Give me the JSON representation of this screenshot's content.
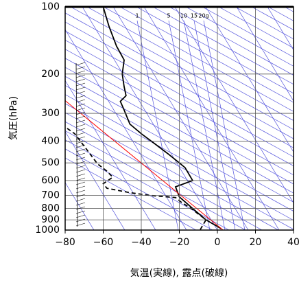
{
  "chart_data": {
    "type": "line",
    "y_label": "気圧(hPa)",
    "x_label": "気温(実線), 露点(破線)",
    "mixing_ratio_labels": [
      "1",
      "5",
      "10",
      "15",
      "20g"
    ],
    "xlim": [
      -80,
      40
    ],
    "xticks": [
      {
        "value": -80,
        "label": "−80"
      },
      {
        "value": -60,
        "label": "−60"
      },
      {
        "value": -40,
        "label": "−40"
      },
      {
        "value": -20,
        "label": "−20"
      },
      0,
      20,
      40
    ],
    "ylim": [
      1000,
      100
    ],
    "log_y": true,
    "yticks": [
      100,
      200,
      300,
      400,
      500,
      600,
      700,
      800,
      900,
      1000
    ],
    "grid": true,
    "series": [
      {
        "color": "#000000",
        "style": "solid",
        "x": [
          2,
          -6,
          -13,
          -20,
          -22,
          -13,
          -17,
          -20,
          -26,
          -33,
          -40,
          -46,
          -49,
          -51,
          -48,
          -49,
          -50,
          -49,
          -53,
          -57,
          -60
        ],
        "values": [
          986,
          900,
          800,
          710,
          640,
          600,
          525,
          500,
          455,
          410,
          370,
          335,
          290,
          265,
          250,
          228,
          200,
          173,
          150,
          122,
          100
        ]
      },
      {
        "color": "#000000",
        "style": "dashed",
        "x": [
          -9,
          -6,
          -13,
          -19,
          -22,
          -35,
          -46,
          -58,
          -60,
          -55,
          -58,
          -63,
          -71,
          -75,
          -79
        ],
        "values": [
          995,
          900,
          810,
          750,
          715,
          700,
          680,
          650,
          620,
          580,
          545,
          505,
          410,
          370,
          350
        ]
      },
      {
        "color": "#ff0000",
        "style": "solid",
        "x": [
          3,
          -80
        ],
        "values": [
          1000,
          263
        ]
      }
    ]
  }
}
